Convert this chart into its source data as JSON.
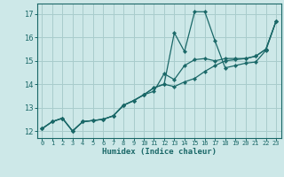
{
  "title": "",
  "xlabel": "Humidex (Indice chaleur)",
  "ylabel": "",
  "bg_color": "#cde8e8",
  "grid_color": "#a8cccc",
  "line_color": "#1a6868",
  "xlim": [
    -0.5,
    23.5
  ],
  "ylim": [
    11.7,
    17.45
  ],
  "xticks": [
    0,
    1,
    2,
    3,
    4,
    5,
    6,
    7,
    8,
    9,
    10,
    11,
    12,
    13,
    14,
    15,
    16,
    17,
    18,
    19,
    20,
    21,
    22,
    23
  ],
  "yticks": [
    12,
    13,
    14,
    15,
    16,
    17
  ],
  "line1_x": [
    0,
    1,
    2,
    3,
    4,
    5,
    6,
    7,
    8,
    9,
    10,
    11,
    12,
    13,
    14,
    15,
    16,
    17,
    18,
    19,
    20,
    21,
    22,
    23
  ],
  "line1_y": [
    12.1,
    12.4,
    12.55,
    12.0,
    12.4,
    12.45,
    12.5,
    12.65,
    13.1,
    13.3,
    13.55,
    13.7,
    14.45,
    14.2,
    14.8,
    15.05,
    15.1,
    15.0,
    15.1,
    15.1,
    15.1,
    15.2,
    15.5,
    16.7
  ],
  "line2_x": [
    0,
    1,
    2,
    3,
    4,
    5,
    6,
    7,
    8,
    9,
    10,
    11,
    12,
    13,
    14,
    15,
    16,
    17,
    18,
    19,
    20,
    21,
    22,
    23
  ],
  "line2_y": [
    12.1,
    12.4,
    12.55,
    12.0,
    12.4,
    12.45,
    12.5,
    12.65,
    13.1,
    13.3,
    13.55,
    13.85,
    14.0,
    16.2,
    15.4,
    17.1,
    17.1,
    15.85,
    14.7,
    14.8,
    14.9,
    14.95,
    15.45,
    16.7
  ],
  "line3_x": [
    0,
    1,
    2,
    3,
    4,
    5,
    6,
    7,
    8,
    9,
    10,
    11,
    12,
    13,
    14,
    15,
    16,
    17,
    18,
    19,
    20,
    21,
    22,
    23
  ],
  "line3_y": [
    12.1,
    12.4,
    12.55,
    12.0,
    12.4,
    12.45,
    12.5,
    12.65,
    13.1,
    13.3,
    13.55,
    13.85,
    14.0,
    13.9,
    14.1,
    14.25,
    14.55,
    14.8,
    15.0,
    15.05,
    15.1,
    15.2,
    15.5,
    16.7
  ]
}
